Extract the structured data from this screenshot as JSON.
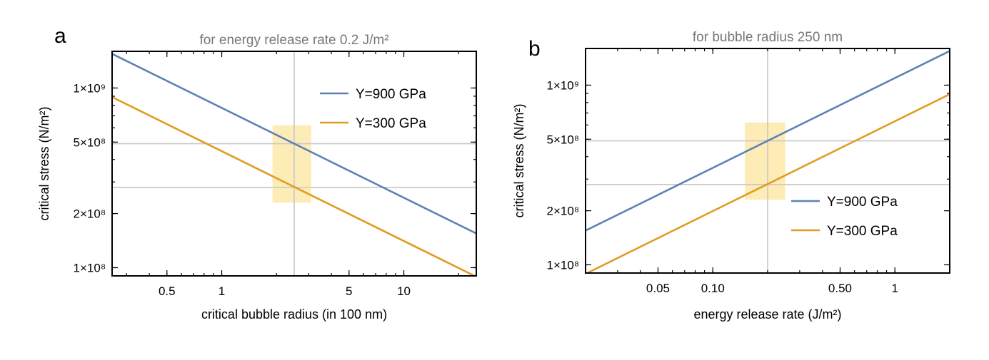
{
  "chart_data": [
    {
      "panel": "a",
      "type": "line",
      "title": "for energy release rate 0.2 J/m²",
      "xlabel": "critical bubble radius (in 100 nm)",
      "ylabel": "critical stress (N/m²)",
      "xscale": "log",
      "yscale": "log",
      "xlim": [
        0.25,
        25
      ],
      "ylim": [
        90000000.0,
        1600000000.0
      ],
      "xticks": [
        {
          "v": 0.5,
          "label": "0.5"
        },
        {
          "v": 1,
          "label": "1"
        },
        {
          "v": 5,
          "label": "5"
        },
        {
          "v": 10,
          "label": "10"
        }
      ],
      "yticks": [
        {
          "v": 100000000.0,
          "label": "1×10⁸"
        },
        {
          "v": 200000000.0,
          "label": "2×10⁸"
        },
        {
          "v": 500000000.0,
          "label": "5×10⁸"
        },
        {
          "v": 1000000000.0,
          "label": "1×10⁹"
        }
      ],
      "ref_lines": {
        "x": [
          2.5
        ],
        "y": [
          490000000.0,
          280000000.0
        ]
      },
      "highlight": {
        "x": [
          1.9,
          3.1
        ],
        "y": [
          230000000.0,
          620000000.0
        ]
      },
      "legend_position": "top-right",
      "series": [
        {
          "name": "Y=900 GPa",
          "color": "#5e81b5",
          "x": [
            0.25,
            25
          ],
          "y": [
            1550000000.0,
            155000000.0
          ]
        },
        {
          "name": "Y=300 GPa",
          "color": "#e19c24",
          "x": [
            0.25,
            25
          ],
          "y": [
            890000000.0,
            89000000.0
          ]
        }
      ]
    },
    {
      "panel": "b",
      "type": "line",
      "title": "for bubble radius 250 nm",
      "xlabel": "energy release rate (J/m²)",
      "ylabel": "critical stress (N/m²)",
      "xscale": "log",
      "yscale": "log",
      "xlim": [
        0.02,
        2
      ],
      "ylim": [
        90000000.0,
        1600000000.0
      ],
      "xticks": [
        {
          "v": 0.05,
          "label": "0.05"
        },
        {
          "v": 0.1,
          "label": "0.10"
        },
        {
          "v": 0.5,
          "label": "0.50"
        },
        {
          "v": 1,
          "label": "1"
        }
      ],
      "yticks": [
        {
          "v": 100000000.0,
          "label": "1×10⁸"
        },
        {
          "v": 200000000.0,
          "label": "2×10⁸"
        },
        {
          "v": 500000000.0,
          "label": "5×10⁸"
        },
        {
          "v": 1000000000.0,
          "label": "1×10⁹"
        }
      ],
      "ref_lines": {
        "x": [
          0.2
        ],
        "y": [
          490000000.0,
          280000000.0
        ]
      },
      "highlight": {
        "x": [
          0.15,
          0.25
        ],
        "y": [
          230000000.0,
          620000000.0
        ]
      },
      "legend_position": "bottom-right",
      "series": [
        {
          "name": "Y=900 GPa",
          "color": "#5e81b5",
          "x": [
            0.02,
            2
          ],
          "y": [
            155000000.0,
            1550000000.0
          ]
        },
        {
          "name": "Y=300 GPa",
          "color": "#e19c24",
          "x": [
            0.02,
            2
          ],
          "y": [
            89000000.0,
            890000000.0
          ]
        }
      ]
    }
  ]
}
